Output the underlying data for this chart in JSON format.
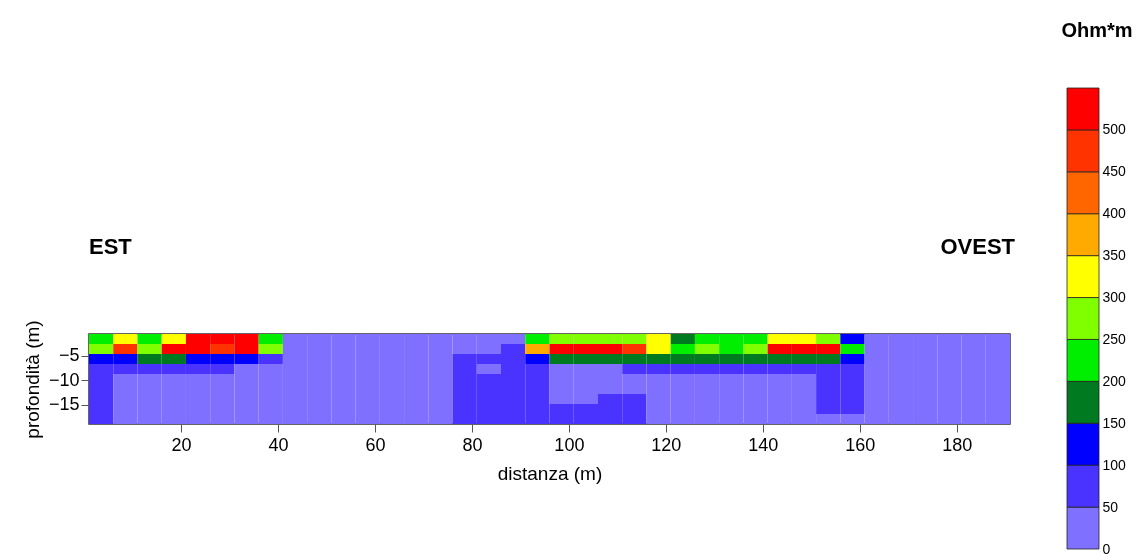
{
  "chart_data": {
    "type": "heatmap",
    "xlabel": "distanza (m)",
    "ylabel": "profondità (m)",
    "clabel": "Ohm*m",
    "annotations": [
      "EST",
      "OVEST"
    ],
    "xlim": [
      1,
      191
    ],
    "xticks": [
      20,
      40,
      60,
      80,
      100,
      120,
      140,
      160,
      180
    ],
    "ylim": [
      -19,
      -0.5
    ],
    "yticks": [
      -5,
      -10,
      -15
    ],
    "clim": [
      0,
      550
    ],
    "cticks": [
      0,
      50,
      100,
      150,
      200,
      250,
      300,
      350,
      400,
      450,
      500
    ],
    "colors": [
      "#8070ff",
      "#4a33ff",
      "#0000ff",
      "#007a20",
      "#00ee00",
      "#80ff00",
      "#ffff00",
      "#ffaa00",
      "#ff6600",
      "#ff3300",
      "#ff0000"
    ],
    "grid": false,
    "legend": false,
    "cells": [
      [
        225,
        325,
        225,
        325,
        525,
        525,
        525,
        225,
        25,
        25,
        25,
        25,
        25,
        25,
        25,
        25,
        25,
        25,
        225,
        275,
        275,
        275,
        275,
        325,
        175,
        225,
        225,
        225,
        325,
        325,
        275,
        125,
        25,
        25,
        25,
        25,
        25,
        25
      ],
      [
        275,
        475,
        275,
        525,
        525,
        475,
        525,
        275,
        25,
        25,
        25,
        25,
        25,
        25,
        25,
        25,
        25,
        75,
        375,
        525,
        525,
        525,
        475,
        325,
        225,
        275,
        225,
        275,
        525,
        525,
        525,
        225,
        25,
        25,
        25,
        25,
        25,
        25
      ],
      [
        125,
        125,
        175,
        175,
        125,
        125,
        125,
        75,
        25,
        25,
        25,
        25,
        25,
        25,
        25,
        75,
        75,
        75,
        125,
        175,
        175,
        175,
        175,
        175,
        175,
        175,
        175,
        175,
        175,
        175,
        175,
        125,
        25,
        25,
        25,
        25,
        25,
        25
      ],
      [
        75,
        75,
        75,
        75,
        75,
        75,
        25,
        25,
        25,
        25,
        25,
        25,
        25,
        25,
        25,
        75,
        25,
        75,
        75,
        25,
        25,
        25,
        75,
        75,
        75,
        75,
        75,
        75,
        75,
        75,
        75,
        75,
        25,
        25,
        25,
        25,
        25,
        25
      ],
      [
        75,
        25,
        25,
        25,
        25,
        25,
        25,
        25,
        25,
        25,
        25,
        25,
        25,
        25,
        25,
        75,
        75,
        75,
        75,
        25,
        25,
        25,
        25,
        25,
        25,
        25,
        25,
        25,
        25,
        25,
        75,
        75,
        25,
        25,
        25,
        25,
        25,
        25
      ],
      [
        75,
        25,
        25,
        25,
        25,
        25,
        25,
        25,
        25,
        25,
        25,
        25,
        25,
        25,
        25,
        75,
        75,
        75,
        75,
        25,
        25,
        25,
        25,
        25,
        25,
        25,
        25,
        25,
        25,
        25,
        75,
        75,
        25,
        25,
        25,
        25,
        25,
        25
      ],
      [
        75,
        25,
        25,
        25,
        25,
        25,
        25,
        25,
        25,
        25,
        25,
        25,
        25,
        25,
        25,
        75,
        75,
        75,
        75,
        25,
        25,
        75,
        75,
        25,
        25,
        25,
        25,
        25,
        25,
        25,
        75,
        75,
        25,
        25,
        25,
        25,
        25,
        25
      ],
      [
        75,
        25,
        25,
        25,
        25,
        25,
        25,
        25,
        25,
        25,
        25,
        25,
        25,
        25,
        25,
        75,
        75,
        75,
        75,
        75,
        75,
        75,
        75,
        25,
        25,
        25,
        25,
        25,
        25,
        25,
        75,
        75,
        25,
        25,
        25,
        25,
        25,
        25
      ],
      [
        75,
        25,
        25,
        25,
        25,
        25,
        25,
        25,
        25,
        25,
        25,
        25,
        25,
        25,
        25,
        75,
        75,
        75,
        75,
        75,
        75,
        75,
        75,
        25,
        25,
        25,
        25,
        25,
        25,
        25,
        25,
        25,
        25,
        25,
        25,
        25,
        25,
        25
      ]
    ]
  }
}
